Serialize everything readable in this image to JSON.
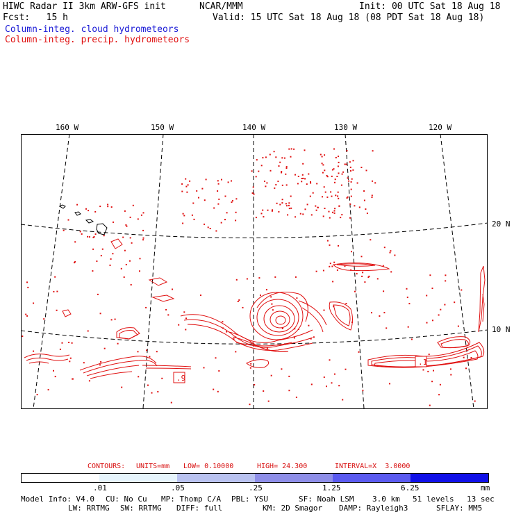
{
  "header": {
    "title": "HIWC Radar II 3km ARW-GFS init",
    "org": "NCAR/MMM",
    "init": "Init: 00 UTC Sat 18 Aug 18",
    "fcst": "Fcst:   15 h",
    "valid": "Valid: 15 UTC Sat 18 Aug 18 (08 PDT Sat 18 Aug 18)",
    "legend_cloud": "Column-integ. cloud hydrometeors",
    "legend_precip": "Column-integ. precip. hydrometeors"
  },
  "map": {
    "lon_labels": [
      "160 W",
      "150 W",
      "140 W",
      "130 W",
      "120 W"
    ],
    "lat_labels": [
      "20 N",
      "10 N"
    ],
    "box_labels": [
      ".9",
      ".1"
    ],
    "colors": {
      "precip": "#e01010",
      "cloud": "#1a1ad6",
      "grid": "#000000"
    }
  },
  "contours": {
    "label": "CONTOURS:",
    "units": "UNITS=mm",
    "low": "LOW= 0.10000",
    "high": "HIGH= 24.300",
    "interval": "INTERVAL=X  3.0000"
  },
  "scale": {
    "ticks": [
      ".01",
      ".05",
      ".25",
      "1.25",
      "6.25"
    ],
    "unit": "mm",
    "colors": [
      "#ffffff",
      "#e6f4fc",
      "#b9c2f0",
      "#8e8ee8",
      "#5a5af0",
      "#1010e8"
    ]
  },
  "footer": {
    "line1": [
      "Model Info: V4.0",
      "CU: No Cu",
      "MP: Thomp C/A",
      "PBL: YSU",
      "SF: Noah LSM",
      "3.0 km",
      "51 levels",
      "13 sec"
    ],
    "line2": [
      "LW: RRTMG",
      "SW: RRTMG",
      "DIFF: full",
      "KM: 2D Smagor",
      "DAMP: Rayleigh3",
      "SFLAY: MM5"
    ]
  }
}
